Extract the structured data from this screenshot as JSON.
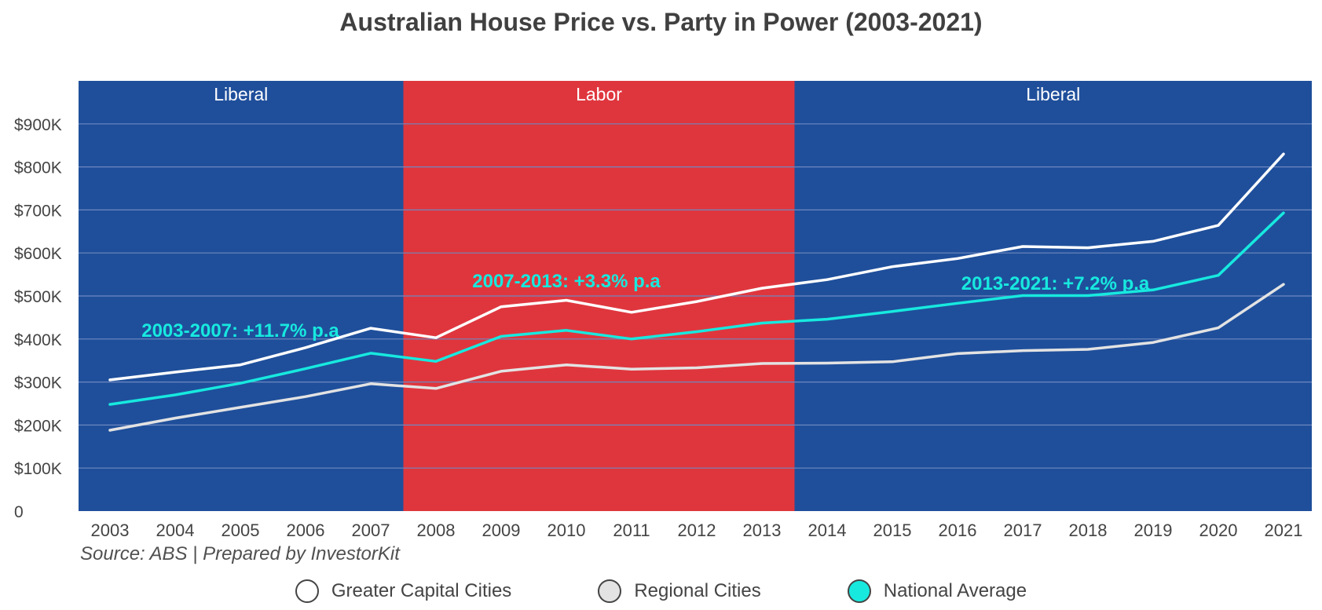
{
  "chart_data": {
    "type": "line",
    "title": "Australian House Price vs. Party in Power (2003-2021)",
    "xlabel": "",
    "ylabel": "",
    "x": [
      "2003",
      "2004",
      "2005",
      "2006",
      "2007",
      "2008",
      "2009",
      "2010",
      "2011",
      "2012",
      "2013",
      "2014",
      "2015",
      "2016",
      "2017",
      "2018",
      "2019",
      "2020",
      "2021"
    ],
    "ylim": [
      0,
      1000000
    ],
    "ytick_labels": [
      "0",
      "$100K",
      "$200K",
      "$300K",
      "$400K",
      "$500K",
      "$600K",
      "$700K",
      "$800K",
      "$900K"
    ],
    "ytick_values": [
      0,
      100000,
      200000,
      300000,
      400000,
      500000,
      600000,
      700000,
      800000,
      900000
    ],
    "grid": true,
    "legend_position": "bottom",
    "series": [
      {
        "name": "Greater Capital Cities",
        "color": "#ffffff",
        "values": [
          305000,
          323000,
          340000,
          380000,
          425000,
          403000,
          475000,
          490000,
          462000,
          487000,
          518000,
          538000,
          568000,
          587000,
          615000,
          612000,
          627000,
          664000,
          830000
        ]
      },
      {
        "name": "Regional Cities",
        "color": "#e3e3e3",
        "values": [
          188000,
          216000,
          241000,
          266000,
          296000,
          285000,
          325000,
          340000,
          330000,
          333000,
          343000,
          344000,
          347000,
          366000,
          373000,
          376000,
          392000,
          426000,
          527000
        ]
      },
      {
        "name": "National Average",
        "color": "#17e9df",
        "values": [
          248000,
          270000,
          297000,
          331000,
          367000,
          348000,
          406000,
          420000,
          400000,
          417000,
          437000,
          446000,
          464000,
          483000,
          501000,
          501000,
          514000,
          548000,
          693000
        ]
      }
    ],
    "periods": [
      {
        "label": "Liberal",
        "start": "2003",
        "end": "2007",
        "color": "#1f4f9b"
      },
      {
        "label": "Labor",
        "start": "2008",
        "end": "2013",
        "color": "#df363e"
      },
      {
        "label": "Liberal",
        "start": "2014",
        "end": "2021",
        "color": "#1f4f9b"
      }
    ],
    "annotations": [
      {
        "text": "2003-2007: +11.7% p.a",
        "x": "2005",
        "y": 405000,
        "color": "#17e9df"
      },
      {
        "text": "2007-2013: +3.3% p.a",
        "x": "2010",
        "y": 520000,
        "color": "#17e9df"
      },
      {
        "text": "2013-2021: +7.2% p.a",
        "x": "2017.5",
        "y": 515000,
        "color": "#17e9df"
      }
    ],
    "legend": [
      {
        "label": "Greater Capital Cities",
        "color": "#ffffff"
      },
      {
        "label": "Regional Cities",
        "color": "#e3e3e3"
      },
      {
        "label": "National Average",
        "color": "#17e9df"
      }
    ]
  },
  "source": "Source: ABS | Prepared by InvestorKit",
  "grid_color": "#6f88bf"
}
